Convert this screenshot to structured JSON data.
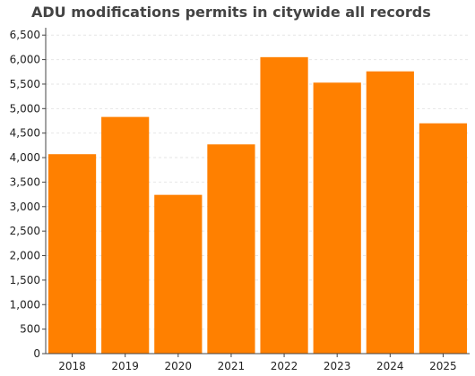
{
  "chart_data": {
    "type": "bar",
    "title": "ADU modifications permits in citywide all records",
    "categories": [
      "2018",
      "2019",
      "2020",
      "2021",
      "2022",
      "2023",
      "2024",
      "2025"
    ],
    "values": [
      4070,
      4830,
      3240,
      4270,
      6050,
      5530,
      5760,
      4700
    ],
    "ylim": [
      0,
      6650
    ],
    "yticks": [
      0,
      500,
      1000,
      1500,
      2000,
      2500,
      3000,
      3500,
      4000,
      4500,
      5000,
      5500,
      6000,
      6500
    ],
    "ytick_labels": [
      "0",
      "500",
      "1,000",
      "1,500",
      "2,000",
      "2,500",
      "3,000",
      "3,500",
      "4,000",
      "4,500",
      "5,000",
      "5,500",
      "6,000",
      "6,500"
    ],
    "xlabel": "",
    "ylabel": "",
    "grid": true,
    "bar_color": "#ff8000"
  }
}
